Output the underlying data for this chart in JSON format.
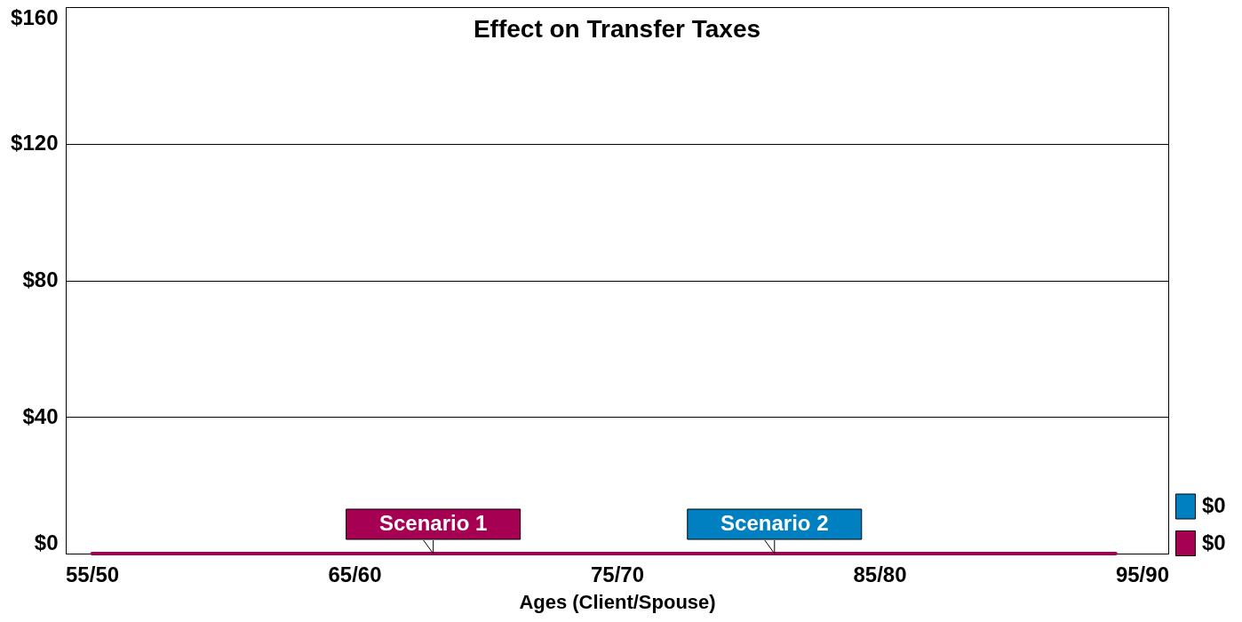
{
  "chart_data": {
    "type": "line",
    "title": "Effect on Transfer Taxes",
    "xlabel": "Ages (Client/Spouse)",
    "categories": [
      "55/50",
      null,
      null,
      null,
      null,
      null,
      null,
      null,
      null,
      null,
      "65/60",
      null,
      null,
      null,
      null,
      null,
      null,
      null,
      null,
      null,
      "75/70",
      null,
      null,
      null,
      null,
      null,
      null,
      null,
      null,
      null,
      "85/80",
      null,
      null,
      null,
      null,
      null,
      null,
      null,
      null,
      null,
      "95/90"
    ],
    "series": [
      {
        "name": "$0",
        "color": "#a60052",
        "values": [
          0,
          0,
          0,
          0,
          0,
          0,
          0,
          0,
          0,
          0,
          0,
          0,
          0,
          0,
          0,
          0,
          0,
          0,
          0,
          0,
          0,
          0,
          0,
          0,
          0,
          0,
          0,
          0,
          0,
          0,
          0,
          0,
          0,
          0,
          0,
          0,
          0,
          0,
          0,
          0,
          null
        ]
      },
      {
        "name": "$0",
        "color": "#0080c0",
        "values": [
          null,
          null,
          null,
          null,
          null,
          null,
          null,
          null,
          null,
          null,
          null,
          null,
          null,
          null,
          null,
          null,
          null,
          null,
          null,
          null,
          null,
          null,
          null,
          null,
          null,
          null,
          null,
          null,
          null,
          null,
          null,
          null,
          null,
          null,
          null,
          null,
          null,
          null,
          null,
          null,
          null
        ]
      }
    ],
    "annotations": [
      {
        "text": "Scenario 1",
        "y": 0
      },
      {
        "text": "Scenario 2",
        "y": 0
      }
    ],
    "ylim": [
      0,
      160
    ],
    "yticks": [
      {
        "value": 0,
        "label": "$0"
      },
      {
        "value": 40,
        "label": "$40"
      },
      {
        "value": 80,
        "label": "$80"
      },
      {
        "value": 120,
        "label": "$120"
      },
      {
        "value": 160,
        "label": "$160"
      }
    ],
    "grid": "y",
    "legend": "bottom right",
    "line_style": "solid"
  }
}
